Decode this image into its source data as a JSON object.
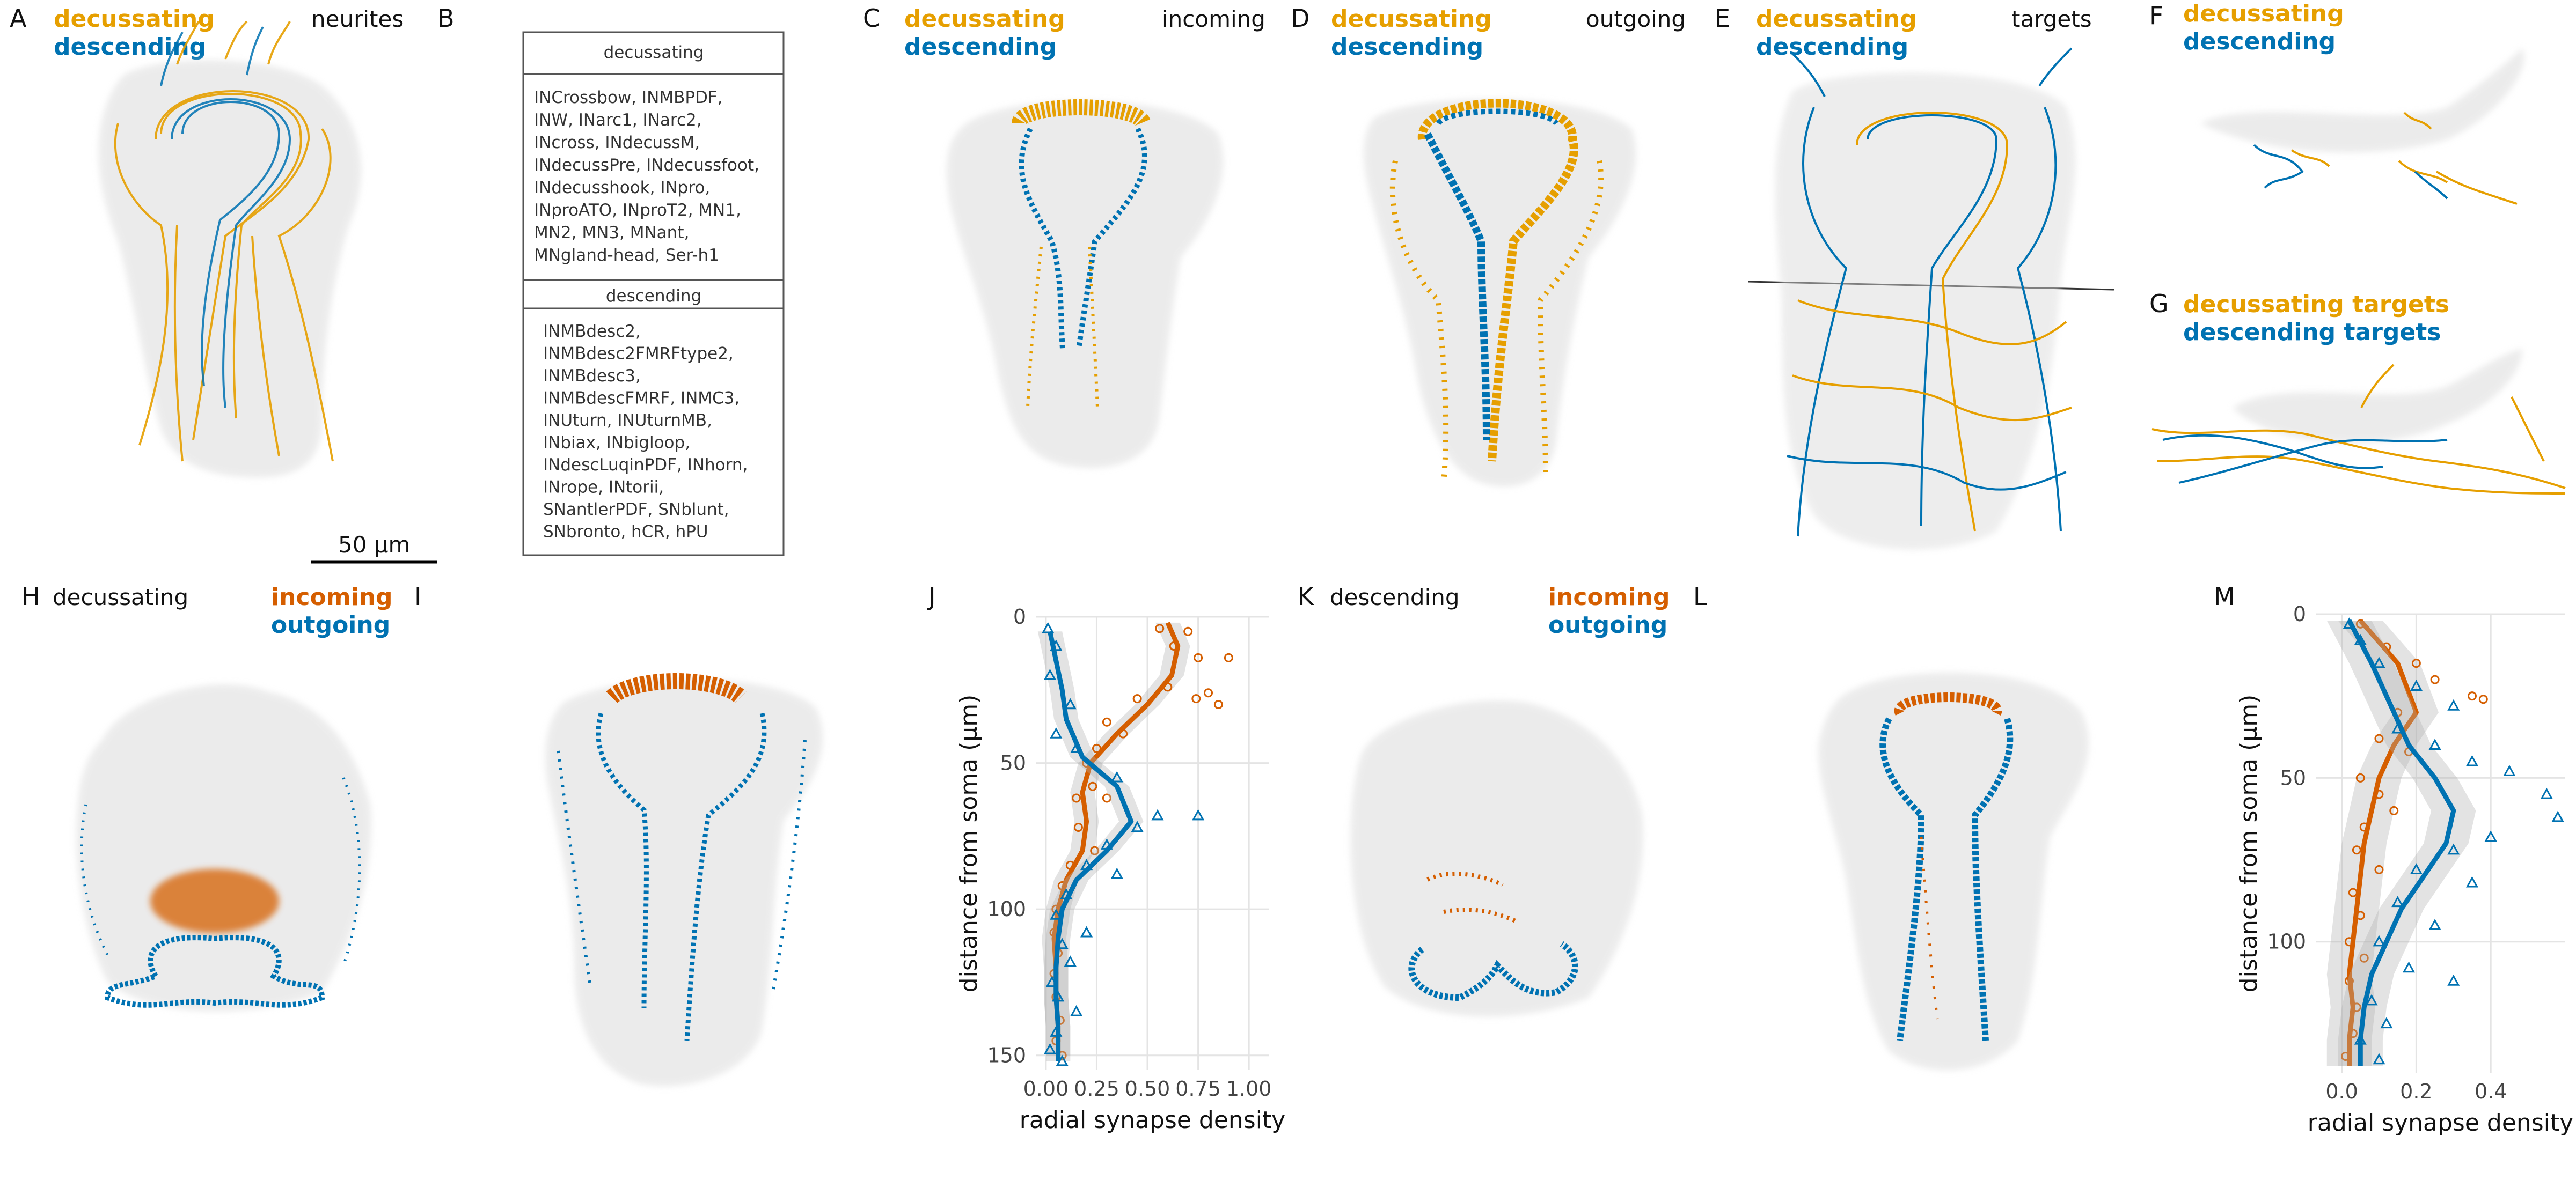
{
  "panels": {
    "A": {
      "letter": "A",
      "leg1": "decussating",
      "leg2": "descending",
      "title": "neurites",
      "scalebar": "50 μm"
    },
    "B": {
      "letter": "B",
      "table": {
        "decussating_header": "decussating",
        "decussating_lines": [
          "INCrossbow, INMBPDF,",
          "INW, INarc1, INarc2,",
          "INcross, INdecussM,",
          "INdecussPre, INdecussfoot,",
          "INdecusshook, INpro,",
          "INproATO, INproT2, MN1,",
          "MN2, MN3, MNant,",
          "MNgland-head, Ser-h1"
        ],
        "descending_header": "descending",
        "descending_lines": [
          "INMBdesc2,",
          "INMBdesc2FMRFtype2,",
          "INMBdesc3,",
          "INMBdescFMRF, INMC3,",
          "INUturn, INUturnMB,",
          "INbiax, INbigloop,",
          "INdescLuqinPDF, INhorn,",
          "INrope, INtorii,",
          "SNantlerPDF, SNblunt,",
          "SNbronto, hCR, hPU"
        ]
      }
    },
    "C": {
      "letter": "C",
      "leg1": "decussating",
      "leg2": "descending",
      "title": "incoming"
    },
    "D": {
      "letter": "D",
      "leg1": "decussating",
      "leg2": "descending",
      "title": "outgoing"
    },
    "E": {
      "letter": "E",
      "leg1": "decussating",
      "leg2": "descending",
      "title": "targets"
    },
    "F": {
      "letter": "F",
      "leg1": "decussating",
      "leg2": "descending"
    },
    "G": {
      "letter": "G",
      "leg1": "decussating targets",
      "leg2": "descending targets"
    },
    "H": {
      "letter": "H",
      "title": "decussating",
      "leg1": "incoming",
      "leg2": "outgoing"
    },
    "I": {
      "letter": "I"
    },
    "J": {
      "letter": "J"
    },
    "K": {
      "letter": "K",
      "title": "descending",
      "leg1": "incoming",
      "leg2": "outgoing"
    },
    "L": {
      "letter": "L"
    },
    "M": {
      "letter": "M"
    }
  },
  "colors": {
    "decussating": "#e69f00",
    "descending": "#0072b2",
    "incoming": "#d55e00",
    "outgoing": "#0072b2",
    "silhouette": "#d9d9d9"
  },
  "chart_data": [
    {
      "type": "scatter",
      "panel": "J",
      "xlabel": "radial synapse density",
      "ylabel": "distance from soma (μm)",
      "xlim": [
        -0.05,
        1.1
      ],
      "ylim": [
        155,
        0
      ],
      "x_ticks": [
        "0.00",
        "0.25",
        "0.50",
        "0.75",
        "1.00"
      ],
      "x_tick_values": [
        0,
        0.25,
        0.5,
        0.75,
        1.0
      ],
      "y_ticks": [
        "0",
        "50",
        "100",
        "150"
      ],
      "y_tick_values": [
        0,
        50,
        100,
        150
      ],
      "grid": true,
      "series": [
        {
          "color": "#d55e00",
          "marker": "circle",
          "smooth": [
            [
              0.6,
              2
            ],
            [
              0.65,
              10
            ],
            [
              0.62,
              20
            ],
            [
              0.5,
              30
            ],
            [
              0.35,
              40
            ],
            [
              0.22,
              50
            ],
            [
              0.18,
              60
            ],
            [
              0.2,
              70
            ],
            [
              0.18,
              80
            ],
            [
              0.1,
              90
            ],
            [
              0.06,
              100
            ],
            [
              0.04,
              110
            ],
            [
              0.05,
              120
            ],
            [
              0.05,
              130
            ],
            [
              0.06,
              140
            ],
            [
              0.06,
              150
            ]
          ],
          "points": [
            [
              0.56,
              4
            ],
            [
              0.7,
              5
            ],
            [
              0.9,
              14
            ],
            [
              0.75,
              14
            ],
            [
              0.63,
              10
            ],
            [
              0.8,
              26
            ],
            [
              0.74,
              28
            ],
            [
              0.85,
              30
            ],
            [
              0.6,
              24
            ],
            [
              0.45,
              28
            ],
            [
              0.38,
              40
            ],
            [
              0.3,
              36
            ],
            [
              0.25,
              45
            ],
            [
              0.2,
              50
            ],
            [
              0.23,
              58
            ],
            [
              0.15,
              62
            ],
            [
              0.3,
              62
            ],
            [
              0.16,
              72
            ],
            [
              0.24,
              80
            ],
            [
              0.12,
              85
            ],
            [
              0.08,
              92
            ],
            [
              0.05,
              100
            ],
            [
              0.04,
              108
            ],
            [
              0.06,
              115
            ],
            [
              0.04,
              122
            ],
            [
              0.05,
              130
            ],
            [
              0.07,
              138
            ],
            [
              0.05,
              145
            ],
            [
              0.08,
              150
            ]
          ]
        },
        {
          "color": "#0072b2",
          "marker": "triangle",
          "smooth": [
            [
              0.02,
              5
            ],
            [
              0.05,
              15
            ],
            [
              0.08,
              25
            ],
            [
              0.1,
              35
            ],
            [
              0.18,
              48
            ],
            [
              0.35,
              58
            ],
            [
              0.42,
              70
            ],
            [
              0.3,
              80
            ],
            [
              0.15,
              90
            ],
            [
              0.08,
              100
            ],
            [
              0.06,
              110
            ],
            [
              0.05,
              120
            ],
            [
              0.05,
              130
            ],
            [
              0.06,
              140
            ],
            [
              0.06,
              152
            ]
          ],
          "points": [
            [
              0.01,
              4
            ],
            [
              0.05,
              10
            ],
            [
              0.02,
              20
            ],
            [
              0.12,
              30
            ],
            [
              0.05,
              40
            ],
            [
              0.15,
              45
            ],
            [
              0.35,
              55
            ],
            [
              0.55,
              68
            ],
            [
              0.75,
              68
            ],
            [
              0.45,
              72
            ],
            [
              0.3,
              78
            ],
            [
              0.2,
              85
            ],
            [
              0.35,
              88
            ],
            [
              0.1,
              95
            ],
            [
              0.05,
              102
            ],
            [
              0.2,
              108
            ],
            [
              0.08,
              112
            ],
            [
              0.12,
              118
            ],
            [
              0.03,
              125
            ],
            [
              0.06,
              130
            ],
            [
              0.15,
              135
            ],
            [
              0.05,
              142
            ],
            [
              0.02,
              148
            ],
            [
              0.08,
              152
            ]
          ]
        }
      ]
    },
    {
      "type": "scatter",
      "panel": "M",
      "xlabel": "radial synapse density",
      "ylabel": "distance from soma (μm)",
      "xlim": [
        -0.07,
        0.6
      ],
      "ylim": [
        140,
        0
      ],
      "x_ticks": [
        "0.0",
        "0.2",
        "0.4"
      ],
      "x_tick_values": [
        0,
        0.2,
        0.4
      ],
      "y_ticks": [
        "0",
        "50",
        "100"
      ],
      "y_tick_values": [
        0,
        50,
        100
      ],
      "grid": true,
      "series": [
        {
          "color": "#d55e00",
          "marker": "circle",
          "smooth": [
            [
              0.05,
              2
            ],
            [
              0.15,
              15
            ],
            [
              0.2,
              30
            ],
            [
              0.14,
              40
            ],
            [
              0.1,
              50
            ],
            [
              0.08,
              60
            ],
            [
              0.06,
              70
            ],
            [
              0.05,
              80
            ],
            [
              0.04,
              90
            ],
            [
              0.03,
              100
            ],
            [
              0.02,
              110
            ],
            [
              0.03,
              120
            ],
            [
              0.02,
              130
            ],
            [
              0.02,
              138
            ]
          ],
          "points": [
            [
              0.05,
              3
            ],
            [
              0.12,
              10
            ],
            [
              0.2,
              15
            ],
            [
              0.25,
              20
            ],
            [
              0.35,
              25
            ],
            [
              0.38,
              26
            ],
            [
              0.15,
              30
            ],
            [
              0.1,
              38
            ],
            [
              0.18,
              42
            ],
            [
              0.05,
              50
            ],
            [
              0.1,
              55
            ],
            [
              0.14,
              60
            ],
            [
              0.06,
              65
            ],
            [
              0.04,
              72
            ],
            [
              0.1,
              78
            ],
            [
              0.03,
              85
            ],
            [
              0.05,
              92
            ],
            [
              0.02,
              100
            ],
            [
              0.06,
              105
            ],
            [
              0.02,
              112
            ],
            [
              0.04,
              120
            ],
            [
              0.03,
              128
            ],
            [
              0.01,
              135
            ]
          ]
        },
        {
          "color": "#0072b2",
          "marker": "triangle",
          "smooth": [
            [
              0.02,
              2
            ],
            [
              0.08,
              15
            ],
            [
              0.14,
              30
            ],
            [
              0.18,
              40
            ],
            [
              0.25,
              50
            ],
            [
              0.3,
              60
            ],
            [
              0.28,
              70
            ],
            [
              0.22,
              80
            ],
            [
              0.16,
              90
            ],
            [
              0.12,
              100
            ],
            [
              0.08,
              110
            ],
            [
              0.06,
              120
            ],
            [
              0.05,
              130
            ],
            [
              0.05,
              138
            ]
          ],
          "points": [
            [
              0.02,
              3
            ],
            [
              0.05,
              8
            ],
            [
              0.1,
              15
            ],
            [
              0.2,
              22
            ],
            [
              0.3,
              28
            ],
            [
              0.15,
              35
            ],
            [
              0.25,
              40
            ],
            [
              0.35,
              45
            ],
            [
              0.45,
              48
            ],
            [
              0.55,
              55
            ],
            [
              0.58,
              62
            ],
            [
              0.4,
              68
            ],
            [
              0.3,
              72
            ],
            [
              0.2,
              78
            ],
            [
              0.35,
              82
            ],
            [
              0.15,
              88
            ],
            [
              0.25,
              95
            ],
            [
              0.1,
              100
            ],
            [
              0.18,
              108
            ],
            [
              0.3,
              112
            ],
            [
              0.08,
              118
            ],
            [
              0.12,
              125
            ],
            [
              0.05,
              130
            ],
            [
              0.1,
              136
            ]
          ]
        }
      ]
    }
  ]
}
